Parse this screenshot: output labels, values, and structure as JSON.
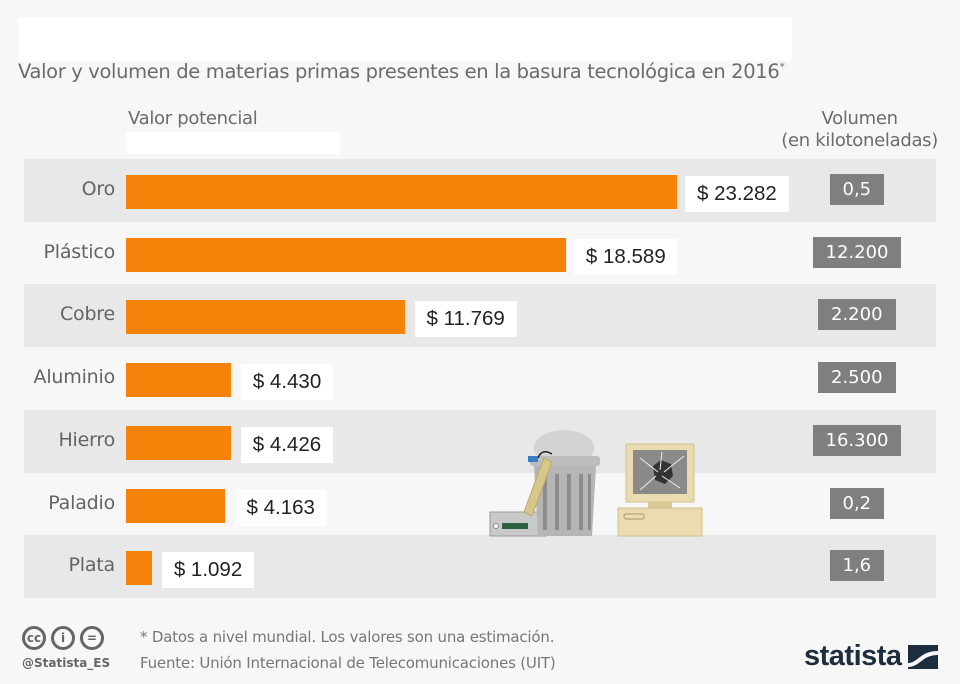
{
  "title": "Valor y volumen de materias primas presentes en la basura tecnológica en 2016",
  "title_marker": "*",
  "header_left": "Valor potencial",
  "header_right_line1": "Volumen",
  "header_right_line2": "(en kilotoneladas)",
  "colors": {
    "bar": "#f5830a",
    "band": "#e8e8e8",
    "volume_box": "#7f7f7f",
    "background": "#f7f7f7"
  },
  "chart_data": {
    "type": "bar",
    "orientation": "horizontal",
    "title": "Valor y volumen de materias primas presentes en la basura tecnológica en 2016*",
    "categories": [
      "Oro",
      "Plástico",
      "Cobre",
      "Aluminio",
      "Hierro",
      "Paladio",
      "Plata"
    ],
    "series": [
      {
        "name": "Valor potencial",
        "values": [
          23282,
          18589,
          11769,
          4430,
          4426,
          4163,
          1092
        ],
        "labels": [
          "$ 23.282",
          "$ 18.589",
          "$ 11.769",
          "$ 4.430",
          "$ 4.426",
          "$ 4.163",
          "$ 1.092"
        ]
      },
      {
        "name": "Volumen (en kilotoneladas)",
        "values": [
          0.5,
          12200,
          2200,
          2500,
          16300,
          0.2,
          1.6
        ],
        "labels": [
          "0,5",
          "12.200",
          "2.200",
          "2.500",
          "16.300",
          "0,2",
          "1,6"
        ]
      }
    ],
    "xlabel": "",
    "ylabel": "",
    "xlim": [
      0,
      23282
    ]
  },
  "footer": {
    "license_icons": [
      "cc-icon",
      "by-icon",
      "nd-icon"
    ],
    "handle": "@Statista_ES",
    "note": "* Datos a nivel mundial. Los valores son una estimación.",
    "source": "Fuente: Unión Internacional de Telecomunicaciones (UIT)",
    "logo": "statista"
  }
}
